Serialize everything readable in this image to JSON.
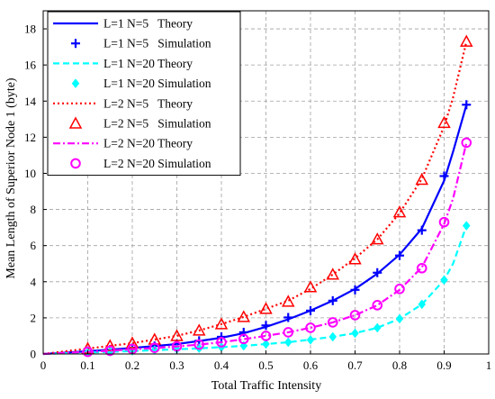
{
  "chart_data": {
    "type": "line",
    "xlabel": "Total Traffic Intensity",
    "ylabel": "Mean Length of Superior Node 1 (byte)",
    "xlim": [
      0,
      1
    ],
    "ylim": [
      0,
      19
    ],
    "xticks": [
      "0",
      "0.1",
      "0.2",
      "0.3",
      "0.4",
      "0.5",
      "0.6",
      "0.7",
      "0.8",
      "0.9",
      "1"
    ],
    "yticks": [
      "0",
      "2",
      "4",
      "6",
      "8",
      "10",
      "12",
      "14",
      "16",
      "18"
    ],
    "grid": true,
    "legend_position": "top-left",
    "x": [
      0.1,
      0.15,
      0.2,
      0.25,
      0.3,
      0.35,
      0.4,
      0.45,
      0.5,
      0.55,
      0.6,
      0.65,
      0.7,
      0.75,
      0.8,
      0.85,
      0.9,
      0.95
    ],
    "series": [
      {
        "name": "L=1 N=5   Theory",
        "kind": "theory",
        "line": "solid",
        "color": "#0000ff",
        "x": [
          0.0,
          0.1,
          0.15,
          0.2,
          0.25,
          0.3,
          0.35,
          0.4,
          0.45,
          0.5,
          0.55,
          0.6,
          0.65,
          0.7,
          0.75,
          0.8,
          0.85,
          0.9,
          0.92,
          0.95
        ],
        "values": [
          0.0,
          0.15,
          0.24,
          0.33,
          0.44,
          0.55,
          0.72,
          0.9,
          1.15,
          1.5,
          1.92,
          2.4,
          2.95,
          3.6,
          4.45,
          5.5,
          6.95,
          9.6,
          11.2,
          13.8
        ]
      },
      {
        "name": "L=1 N=5   Simulation",
        "kind": "simulation",
        "marker": "plus",
        "color": "#0000ff",
        "values": [
          0.15,
          0.24,
          0.33,
          0.44,
          0.56,
          0.73,
          0.95,
          1.2,
          1.58,
          2.02,
          2.4,
          2.95,
          3.55,
          4.5,
          5.45,
          6.85,
          9.85,
          13.8
        ]
      },
      {
        "name": "L=1 N=20 Theory",
        "kind": "theory",
        "line": "dashed",
        "color": "#00ffff",
        "x": [
          0.0,
          0.1,
          0.15,
          0.2,
          0.25,
          0.3,
          0.35,
          0.4,
          0.45,
          0.5,
          0.55,
          0.6,
          0.65,
          0.7,
          0.75,
          0.8,
          0.85,
          0.9,
          0.92,
          0.95
        ],
        "values": [
          0.0,
          0.08,
          0.12,
          0.16,
          0.21,
          0.26,
          0.31,
          0.38,
          0.45,
          0.55,
          0.65,
          0.8,
          0.95,
          1.15,
          1.45,
          1.95,
          2.75,
          4.1,
          5.0,
          7.1
        ]
      },
      {
        "name": "L=1 N=20 Simulation",
        "kind": "simulation",
        "marker": "diamond",
        "color": "#00ffff",
        "values": [
          0.08,
          0.12,
          0.17,
          0.22,
          0.27,
          0.32,
          0.38,
          0.45,
          0.55,
          0.65,
          0.78,
          0.95,
          1.15,
          1.45,
          1.95,
          2.75,
          4.1,
          7.1
        ]
      },
      {
        "name": "L=2 N=5   Theory",
        "kind": "theory",
        "line": "dotted",
        "color": "#ff0000",
        "x": [
          0.0,
          0.1,
          0.15,
          0.2,
          0.25,
          0.3,
          0.35,
          0.4,
          0.45,
          0.5,
          0.55,
          0.6,
          0.65,
          0.7,
          0.75,
          0.8,
          0.85,
          0.9,
          0.92,
          0.95
        ],
        "values": [
          0.0,
          0.3,
          0.45,
          0.6,
          0.8,
          1.0,
          1.3,
          1.65,
          2.05,
          2.5,
          2.95,
          3.6,
          4.4,
          5.3,
          6.35,
          7.8,
          9.7,
          12.6,
          14.2,
          17.3
        ]
      },
      {
        "name": "L=2 N=5   Simulation",
        "kind": "simulation",
        "marker": "triangle",
        "color": "#ff0000",
        "values": [
          0.3,
          0.45,
          0.6,
          0.8,
          1.0,
          1.3,
          1.65,
          2.05,
          2.5,
          2.9,
          3.7,
          4.4,
          5.25,
          6.35,
          7.85,
          9.65,
          12.8,
          17.3
        ]
      },
      {
        "name": "L=2 N=20 Theory",
        "kind": "theory",
        "line": "dashdot",
        "color": "#ff00ff",
        "x": [
          0.0,
          0.1,
          0.15,
          0.2,
          0.25,
          0.3,
          0.35,
          0.4,
          0.45,
          0.5,
          0.55,
          0.6,
          0.65,
          0.7,
          0.75,
          0.8,
          0.85,
          0.9,
          0.92,
          0.95
        ],
        "values": [
          0.0,
          0.12,
          0.18,
          0.26,
          0.33,
          0.42,
          0.52,
          0.65,
          0.82,
          1.0,
          1.2,
          1.45,
          1.75,
          2.15,
          2.7,
          3.55,
          4.8,
          7.2,
          8.6,
          11.7
        ]
      },
      {
        "name": "L=2 N=20 Simulation",
        "kind": "simulation",
        "marker": "circle",
        "color": "#ff00ff",
        "values": [
          0.12,
          0.18,
          0.27,
          0.34,
          0.42,
          0.52,
          0.65,
          0.83,
          1.0,
          1.2,
          1.45,
          1.75,
          2.15,
          2.7,
          3.6,
          4.75,
          7.3,
          11.7
        ]
      }
    ]
  }
}
